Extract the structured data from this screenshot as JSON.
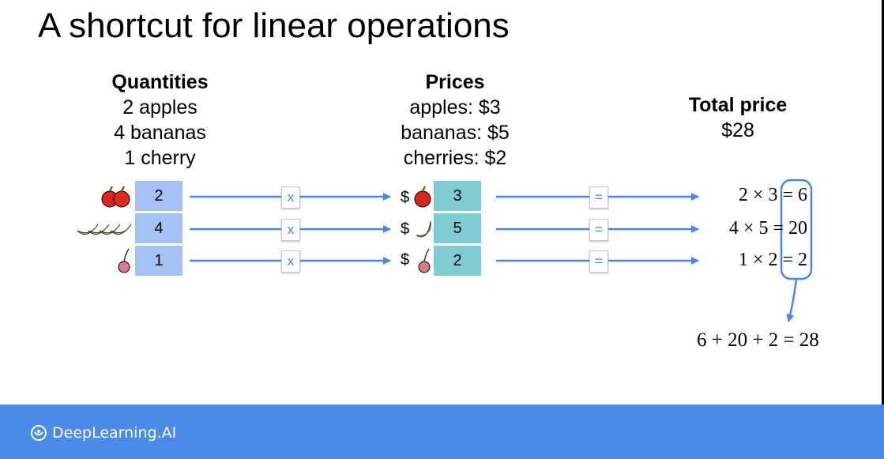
{
  "title": "A shortcut for linear operations",
  "quantities": {
    "header": "Quantities",
    "lines": [
      "2 apples",
      "4 bananas",
      "1 cherry"
    ]
  },
  "prices": {
    "header": "Prices",
    "lines": [
      "apples: $3",
      "bananas: $5",
      "cherries: $2"
    ]
  },
  "total": {
    "header": "Total price",
    "value": "$28"
  },
  "rows": [
    {
      "fruit_icon": "apple-icon",
      "qty": "2",
      "op": "x",
      "price": "3",
      "eq_op": "=",
      "equation": "2 × 3 = 6"
    },
    {
      "fruit_icon": "banana-icon",
      "qty": "4",
      "op": "x",
      "price": "5",
      "eq_op": "=",
      "equation": "4 × 5 = 20"
    },
    {
      "fruit_icon": "cherry-icon",
      "qty": "1",
      "op": "x",
      "price": "2",
      "eq_op": "=",
      "equation": "1 × 2 = 2"
    }
  ],
  "dollar": "$",
  "sum": "6 + 20 + 2 = 28",
  "footer": {
    "brand": "DeepLearning.AI"
  },
  "colors": {
    "qty_cell": "#a4c2f4",
    "price_cell": "#80ccd4",
    "arrow": "#4a86e8",
    "footer": "#4a8ae8"
  }
}
